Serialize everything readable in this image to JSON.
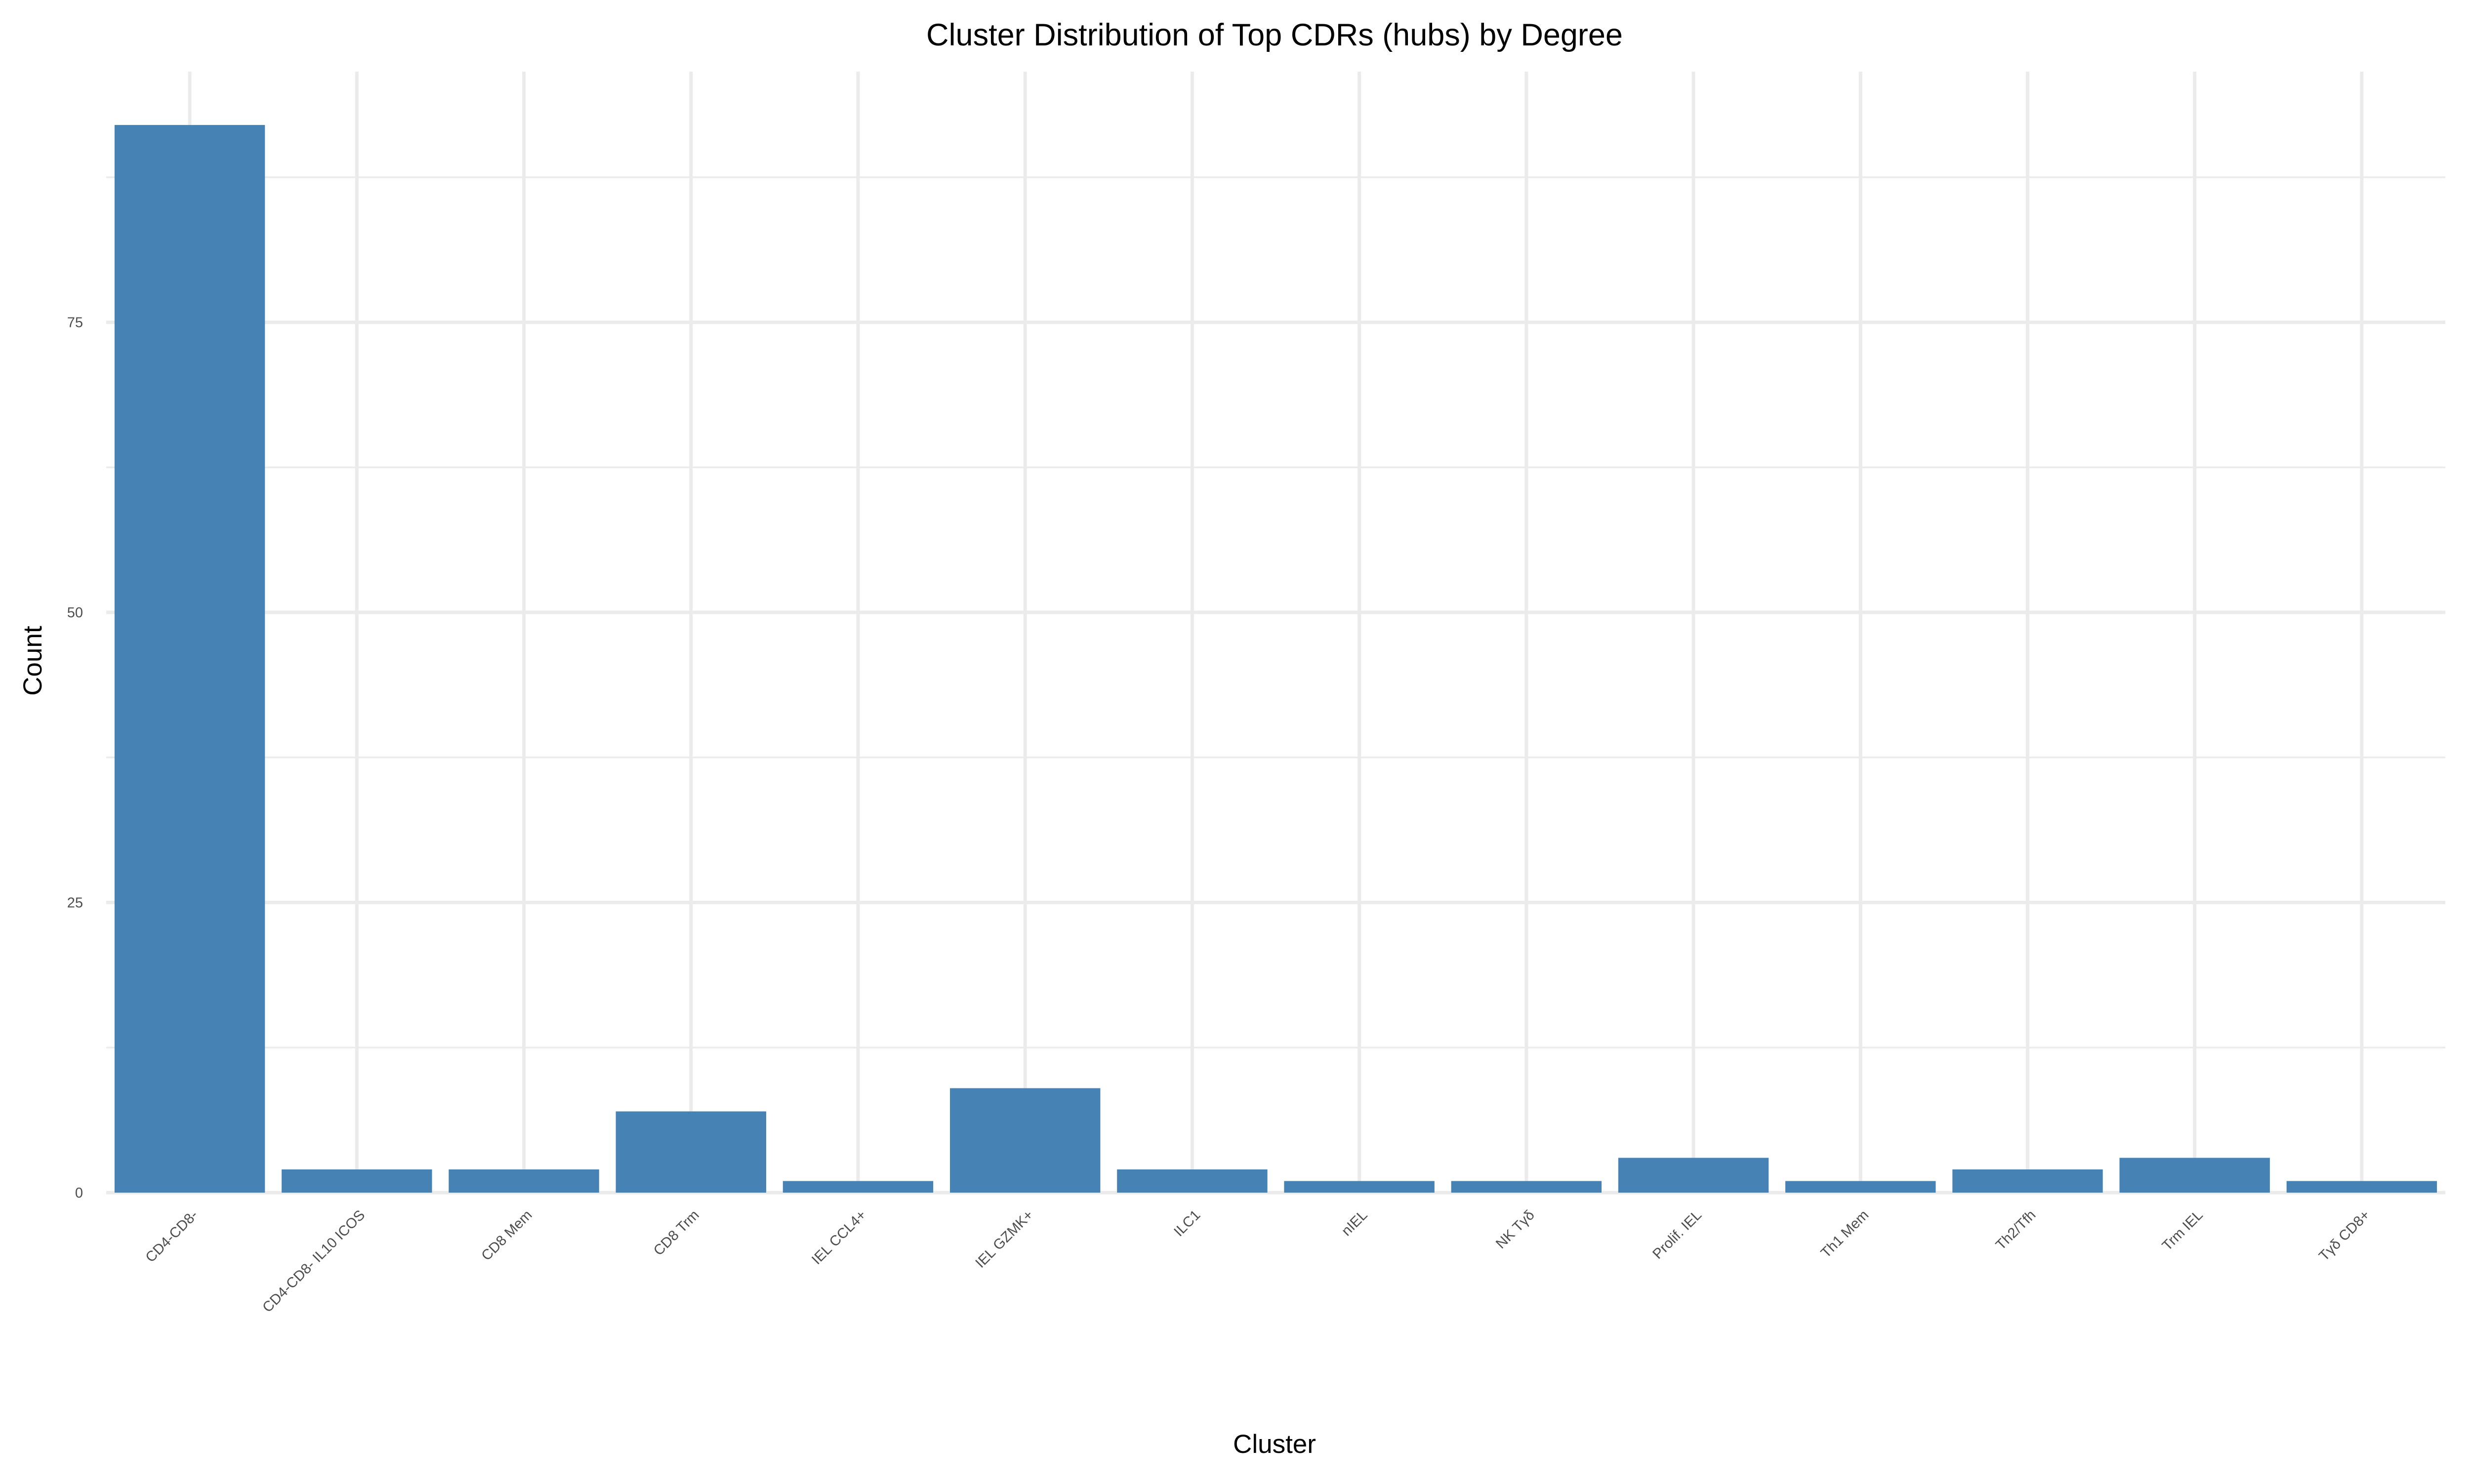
{
  "chart_data": {
    "type": "bar",
    "title": "Cluster Distribution of Top CDRs (hubs) by Degree",
    "xlabel": "Cluster",
    "ylabel": "Count",
    "categories": [
      "CD4-CD8-",
      "CD4-CD8- IL10 ICOS",
      "CD8 Mem",
      "CD8 Trm",
      "IEL CCL4+",
      "IEL GZMK+",
      "ILC1",
      "nIEL",
      "NK Tγδ",
      "Prolif. IEL",
      "Th1 Mem",
      "Th2/Tfh",
      "Trm IEL",
      "Tγδ CD8+"
    ],
    "values": [
      92,
      2,
      2,
      7,
      1,
      9,
      2,
      1,
      1,
      3,
      1,
      2,
      3,
      1
    ],
    "ylim": [
      0,
      96.6
    ],
    "yticks": [
      0,
      25,
      50,
      75
    ],
    "bar_color": "#4682b4",
    "grid": true,
    "legend": "none"
  }
}
